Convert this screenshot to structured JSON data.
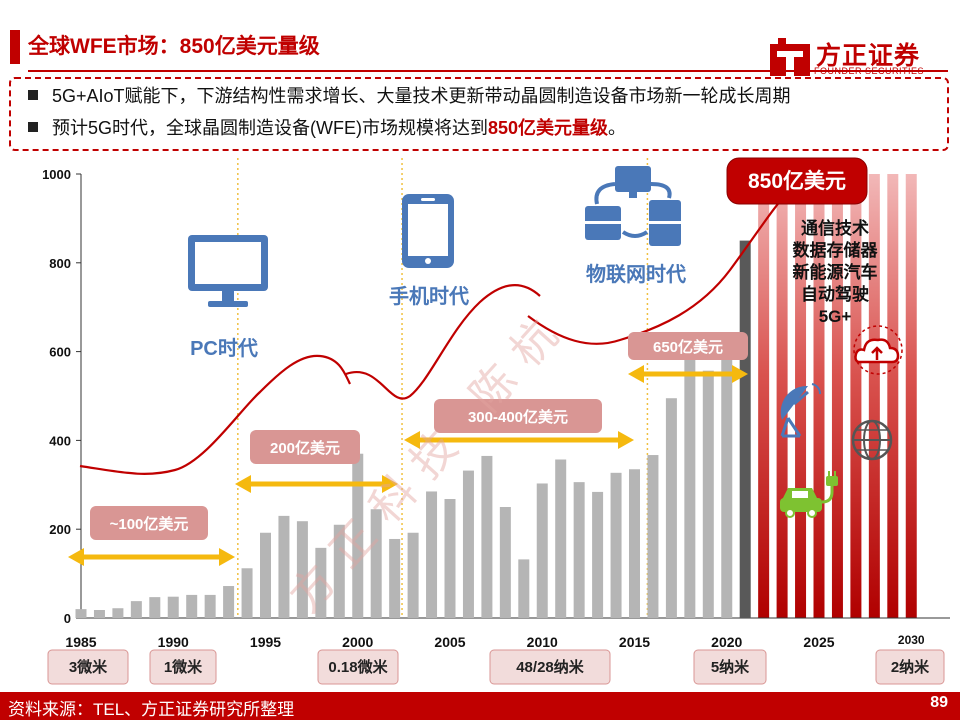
{
  "header": {
    "title": "全球WFE市场：850亿美元量级",
    "logo_text": "方正证券",
    "logo_subtext": "FOUNDER SECURITIES"
  },
  "bullets": [
    {
      "text": "5G+AIoT赋能下，下游结构性需求增长、大量技术更新带动晶圆制造设备市场新一轮成长周期",
      "highlight": ""
    },
    {
      "text": "预计5G时代，全球晶圆制造设备(WFE)市场规模将达到",
      "highlight": "850亿美元量级",
      "suffix": "。"
    }
  ],
  "footer": {
    "source": "资料来源：TEL、方正证券研究所整理",
    "page_number": "89"
  },
  "colors": {
    "brand": "#c00000",
    "bar": "#b5b5b5",
    "bar_dark": "#595959",
    "arrow": "#f5b90f",
    "era_text": "#4a78b8",
    "label_box": "#d99694"
  },
  "chart_data": {
    "type": "bar",
    "ylim": [
      0,
      1000
    ],
    "yticks": [
      "0",
      "200",
      "400",
      "600",
      "800",
      "1000"
    ],
    "x_ticks": [
      "1985",
      "1990",
      "1995",
      "2000",
      "2005",
      "2010",
      "2015",
      "2020",
      "2025",
      "2030"
    ],
    "categories": [
      1985,
      1986,
      1987,
      1988,
      1989,
      1990,
      1991,
      1992,
      1993,
      1994,
      1995,
      1996,
      1997,
      1998,
      1999,
      2000,
      2001,
      2002,
      2003,
      2004,
      2005,
      2006,
      2007,
      2008,
      2009,
      2010,
      2011,
      2012,
      2013,
      2014,
      2015,
      2016,
      2017,
      2018,
      2019,
      2020,
      2021,
      2022,
      2023,
      2024,
      2025,
      2026,
      2027,
      2028,
      2029,
      2030
    ],
    "values": [
      20,
      18,
      22,
      38,
      47,
      48,
      52,
      52,
      72,
      112,
      192,
      230,
      218,
      158,
      210,
      370,
      245,
      178,
      192,
      285,
      268,
      332,
      365,
      250,
      132,
      303,
      357,
      306,
      284,
      327,
      335,
      367,
      495,
      600,
      557,
      600,
      850,
      null,
      null,
      null,
      null,
      null,
      null,
      null,
      null,
      null
    ],
    "forecast_years": [
      2022,
      2023,
      2024,
      2025,
      2026,
      2027,
      2028,
      2029,
      2030
    ],
    "eras": [
      "PC时代",
      "手机时代",
      "物联网时代"
    ],
    "ranges": [
      "~100亿美元",
      "200亿美元",
      "300-400亿美元",
      "650亿美元"
    ],
    "target_label": "850亿美元",
    "drivers": [
      "通信技术",
      "数据存储器",
      "新能源汽车",
      "自动驾驶",
      "5G+"
    ],
    "nodes": [
      "3微米",
      "1微米",
      "0.18微米",
      "48/28纳米",
      "5纳米",
      "2纳米"
    ],
    "watermark": "方正科技 陈杭",
    "grid": false,
    "legend": "none"
  }
}
